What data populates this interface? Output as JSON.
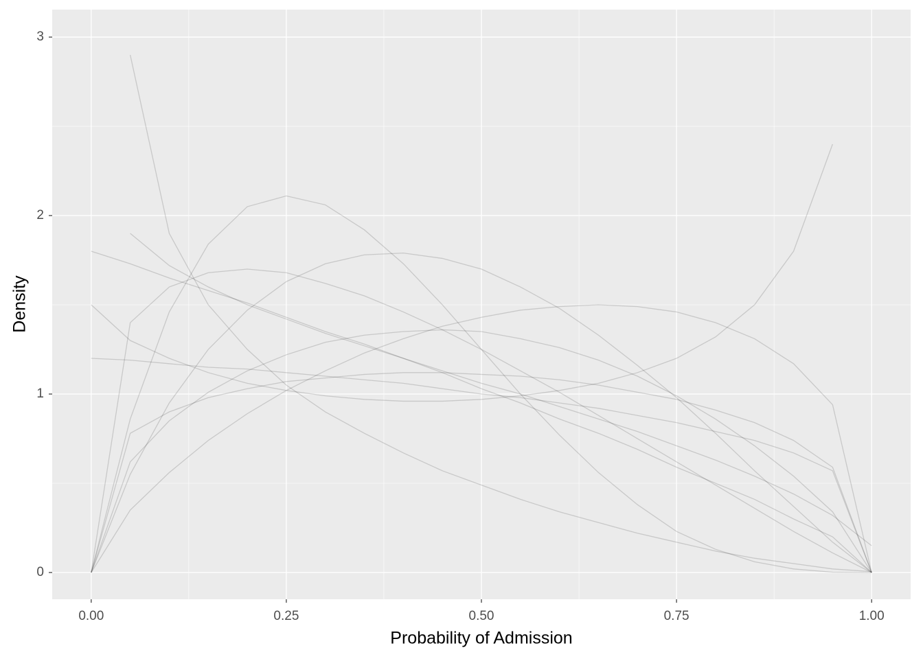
{
  "chart_data": {
    "type": "line",
    "x_label": "Probability of Admission",
    "y_label": "Density",
    "x": [
      0,
      0.05,
      0.1,
      0.15,
      0.2,
      0.25,
      0.3,
      0.35,
      0.4,
      0.45,
      0.5,
      0.55,
      0.6,
      0.65,
      0.7,
      0.75,
      0.8,
      0.85,
      0.9,
      0.95,
      1
    ],
    "series": [
      {
        "values": [
          1.8,
          1.73,
          1.65,
          1.58,
          1.51,
          1.43,
          1.35,
          1.28,
          1.2,
          1.12,
          1.03,
          0.95,
          0.86,
          0.78,
          0.69,
          0.59,
          0.5,
          0.41,
          0.3,
          0.2,
          0
        ]
      },
      {
        "values": [
          0,
          0.86,
          1.46,
          1.84,
          2.05,
          2.11,
          2.06,
          1.92,
          1.73,
          1.5,
          1.25,
          1.0,
          0.77,
          0.56,
          0.38,
          0.23,
          0.13,
          0.06,
          0.02,
          0.002,
          0
        ]
      },
      {
        "values": [
          null,
          2.9,
          1.9,
          1.5,
          1.25,
          1.05,
          0.9,
          0.78,
          0.67,
          0.57,
          0.49,
          0.41,
          0.34,
          0.28,
          0.22,
          0.17,
          0.12,
          0.08,
          0.05,
          0.02,
          0.005
        ]
      },
      {
        "values": [
          0,
          0.62,
          0.85,
          1.01,
          1.13,
          1.22,
          1.29,
          1.33,
          1.35,
          1.36,
          1.35,
          1.31,
          1.26,
          1.19,
          1.1,
          0.99,
          0.86,
          0.71,
          0.54,
          0.34,
          0
        ]
      },
      {
        "values": [
          0,
          0.78,
          0.9,
          0.98,
          1.03,
          1.07,
          1.09,
          1.11,
          1.12,
          1.12,
          1.11,
          1.1,
          1.08,
          1.05,
          1.01,
          0.97,
          0.91,
          0.84,
          0.74,
          0.59,
          0
        ]
      },
      {
        "values": [
          1.5,
          1.3,
          1.2,
          1.12,
          1.06,
          1.02,
          0.99,
          0.97,
          0.96,
          0.96,
          0.97,
          0.99,
          1.02,
          1.06,
          1.12,
          1.2,
          1.32,
          1.5,
          1.8,
          2.4,
          null
        ]
      },
      {
        "values": [
          1.2,
          1.19,
          1.17,
          1.15,
          1.14,
          1.12,
          1.1,
          1.08,
          1.06,
          1.03,
          1.0,
          0.98,
          0.95,
          0.92,
          0.88,
          0.84,
          0.79,
          0.74,
          0.67,
          0.57,
          0
        ]
      },
      {
        "values": [
          null,
          1.9,
          1.72,
          1.6,
          1.5,
          1.42,
          1.34,
          1.27,
          1.2,
          1.13,
          1.06,
          1.0,
          0.93,
          0.86,
          0.79,
          0.71,
          0.63,
          0.54,
          0.44,
          0.32,
          0.15
        ]
      },
      {
        "values": [
          0,
          0.35,
          0.56,
          0.74,
          0.89,
          1.02,
          1.13,
          1.23,
          1.31,
          1.38,
          1.43,
          1.47,
          1.49,
          1.5,
          1.49,
          1.46,
          1.4,
          1.31,
          1.17,
          0.94,
          0
        ]
      },
      {
        "values": [
          0,
          0.55,
          0.95,
          1.25,
          1.47,
          1.63,
          1.73,
          1.78,
          1.79,
          1.76,
          1.7,
          1.6,
          1.48,
          1.33,
          1.16,
          0.98,
          0.78,
          0.57,
          0.37,
          0.17,
          0
        ]
      },
      {
        "values": [
          0,
          1.4,
          1.6,
          1.68,
          1.7,
          1.68,
          1.62,
          1.55,
          1.46,
          1.36,
          1.25,
          1.13,
          1.01,
          0.88,
          0.75,
          0.62,
          0.49,
          0.36,
          0.23,
          0.11,
          0
        ]
      }
    ],
    "color": "#000000",
    "opacity": 0.15,
    "xlim": [
      -0.05,
      1.05
    ],
    "xticks": [
      {
        "value": 0,
        "label": "0.00"
      },
      {
        "value": 0.25,
        "label": "0.25"
      },
      {
        "value": 0.5,
        "label": "0.50"
      },
      {
        "value": 0.75,
        "label": "0.75"
      },
      {
        "value": 1,
        "label": "1.00"
      }
    ],
    "ylim": [
      -0.15,
      3.154
    ],
    "yticks": [
      0,
      1,
      2,
      3
    ],
    "grid": true,
    "minor_grid": true,
    "legend": false
  }
}
